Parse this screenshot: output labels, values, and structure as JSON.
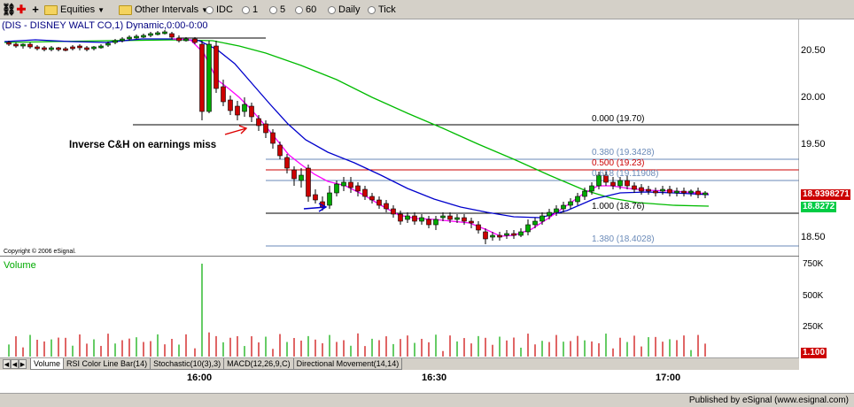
{
  "toolbar": {
    "equities": "Equities",
    "other_intervals": "Other Intervals",
    "idc": "IDC",
    "i1": "1",
    "i5": "5",
    "i60": "60",
    "daily": "Daily",
    "tick": "Tick"
  },
  "chart": {
    "title": "(DIS - DISNEY WALT CO,1) Dynamic,0:00-0:00",
    "annotation": "Inverse C&H on earnings miss",
    "copyright": "Copyright © 2006 eSignal.",
    "price_ticks": [
      "20.50",
      "20.00",
      "19.50",
      "18.50"
    ],
    "last_price": "18.93",
    "last_price_suffix": "98271",
    "ma_value": "18.8272",
    "fib_levels": [
      {
        "text": "0.000 (19.70)",
        "color": "#000000"
      },
      {
        "text": "0.380 (19.3428)",
        "color": "#6a8ab8"
      },
      {
        "text": "0.500 (19.23)",
        "color": "#cc0000"
      },
      {
        "text": "0.618 (19.11908)",
        "color": "#6a8ab8"
      },
      {
        "text": "1.000 (18.76)",
        "color": "#000000"
      },
      {
        "text": "1.380 (18.4028)",
        "color": "#6a8ab8"
      }
    ]
  },
  "volume": {
    "title": "Volume",
    "ticks": [
      "750K",
      "500K",
      "250K"
    ],
    "last": "1.100"
  },
  "tabs": [
    "Volume",
    "RSI Color Line Bar(14)",
    "Stochastic(10(3),3)",
    "MACD(12,26,9,C)",
    "Directional Movement(14,14)"
  ],
  "xaxis": [
    "16:00",
    "16:30",
    "17:00"
  ],
  "footer": {
    "published": "Published by eSignal (www.esignal.com)"
  },
  "colors": {
    "up_candle": "#00aa00",
    "down_candle": "#cc0000",
    "ma_fast": "#ff00ff",
    "ma_mid": "#0000cc",
    "ma_slow": "#00bb00",
    "price_badge": "#cc0000",
    "ma_badge": "#00cc44"
  }
}
